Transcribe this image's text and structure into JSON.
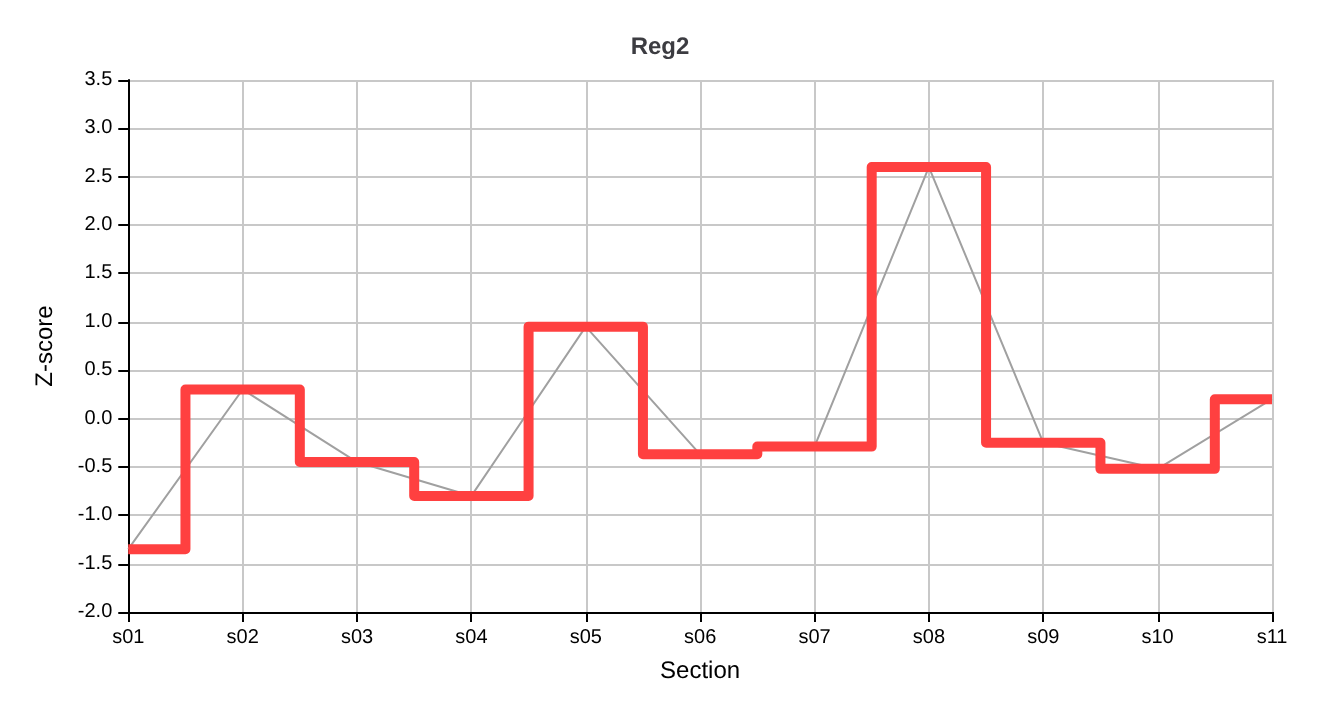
{
  "chart_data": {
    "type": "step",
    "title": "Reg2",
    "xlabel": "Section",
    "ylabel": "Z-score",
    "categories": [
      "s01",
      "s02",
      "s03",
      "s04",
      "s05",
      "s06",
      "s07",
      "s08",
      "s09",
      "s10",
      "s11"
    ],
    "series": [
      {
        "type": "line",
        "color": "#a0a0a0",
        "values": [
          -1.35,
          0.3,
          -0.45,
          -0.8,
          0.95,
          -0.37,
          -0.29,
          2.6,
          -0.25,
          -0.52,
          0.2
        ]
      },
      {
        "color": "#ff4040",
        "values": [
          -1.35,
          0.3,
          -0.45,
          -0.8,
          0.95,
          -0.37,
          -0.29,
          2.6,
          -0.25,
          -0.52,
          0.2
        ]
      }
    ],
    "ylim": [
      -2,
      3.5
    ],
    "yticks": [
      {
        "value": -2,
        "label": "-2.0"
      },
      -1.5,
      {
        "value": -1,
        "label": "-1.0"
      },
      -0.5,
      {
        "value": 0,
        "label": "0.0"
      },
      0.5,
      {
        "value": 1,
        "label": "1.0"
      },
      1.5,
      {
        "value": 2,
        "label": "2.0"
      },
      2.5,
      {
        "value": 3,
        "label": "3.0"
      },
      3.5
    ],
    "grid": true,
    "marker": "none"
  }
}
